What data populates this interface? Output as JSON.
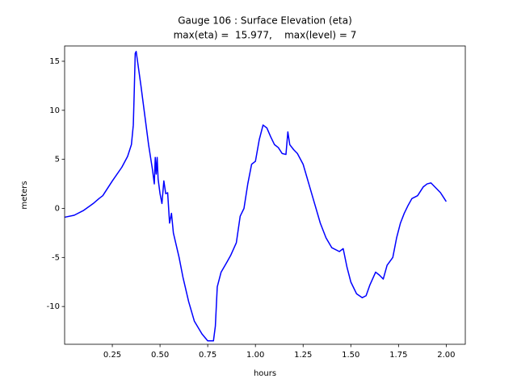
{
  "chart_data": {
    "type": "line",
    "title": "Gauge 106 : Surface Elevation (eta)",
    "subtitle": "max(eta) =  15.977,    max(level) = 7",
    "x_label": "hours",
    "y_label": "meters",
    "color": "#0000ff",
    "x": [
      0.0,
      0.05,
      0.1,
      0.15,
      0.18,
      0.2,
      0.25,
      0.3,
      0.33,
      0.35,
      0.36,
      0.365,
      0.37,
      0.375,
      0.38,
      0.4,
      0.42,
      0.44,
      0.46,
      0.47,
      0.475,
      0.48,
      0.485,
      0.49,
      0.5,
      0.51,
      0.52,
      0.53,
      0.54,
      0.55,
      0.56,
      0.57,
      0.6,
      0.62,
      0.65,
      0.68,
      0.72,
      0.75,
      0.78,
      0.79,
      0.8,
      0.82,
      0.85,
      0.87,
      0.9,
      0.92,
      0.94,
      0.96,
      0.98,
      1.0,
      1.02,
      1.04,
      1.06,
      1.08,
      1.1,
      1.12,
      1.14,
      1.16,
      1.17,
      1.18,
      1.2,
      1.22,
      1.25,
      1.28,
      1.31,
      1.34,
      1.37,
      1.4,
      1.44,
      1.46,
      1.48,
      1.5,
      1.53,
      1.56,
      1.58,
      1.6,
      1.63,
      1.65,
      1.67,
      1.69,
      1.72,
      1.74,
      1.76,
      1.78,
      1.8,
      1.82,
      1.85,
      1.88,
      1.9,
      1.92,
      1.95,
      1.97,
      1.99,
      2.0
    ],
    "values": [
      -0.9,
      -0.7,
      -0.2,
      0.5,
      1.0,
      1.3,
      2.8,
      4.2,
      5.3,
      6.5,
      8.5,
      12,
      15.8,
      16.0,
      15.3,
      12.5,
      9.5,
      6.5,
      4.0,
      2.5,
      5.2,
      3.5,
      5.2,
      3,
      1.5,
      0.5,
      2.8,
      1.5,
      1.6,
      -1.5,
      -0.5,
      -2.5,
      -5,
      -7,
      -9.5,
      -11.5,
      -12.8,
      -13.5,
      -13.5,
      -12,
      -8,
      -6.5,
      -5.5,
      -4.8,
      -3.5,
      -0.8,
      0,
      2.5,
      4.5,
      4.8,
      7,
      8.5,
      8.2,
      7.3,
      6.5,
      6.2,
      5.6,
      5.5,
      7.8,
      6.5,
      6,
      5.6,
      4.5,
      2.5,
      0.5,
      -1.5,
      -3,
      -4,
      -4.4,
      -4.1,
      -6,
      -7.5,
      -8.7,
      -9.1,
      -8.9,
      -7.8,
      -6.5,
      -6.8,
      -7.2,
      -5.8,
      -5,
      -3,
      -1.5,
      -0.5,
      0.3,
      1,
      1.3,
      2.2,
      2.5,
      2.6,
      2.0,
      1.6,
      1.0,
      0.7
    ],
    "xlim": [
      0.0,
      2.1
    ],
    "ylim": [
      -13.85,
      16.56
    ],
    "xticks": [
      {
        "value": 0.25,
        "label": "0.25"
      },
      {
        "value": 0.5,
        "label": "0.50"
      },
      {
        "value": 0.75,
        "label": "0.75"
      },
      {
        "value": 1,
        "label": "1.00"
      },
      {
        "value": 1.25,
        "label": "1.25"
      },
      {
        "value": 1.5,
        "label": "1.50"
      },
      {
        "value": 1.75,
        "label": "1.75"
      },
      {
        "value": 2,
        "label": "2.00"
      }
    ],
    "yticks": [
      -10,
      -5,
      0,
      5,
      10,
      15
    ]
  }
}
